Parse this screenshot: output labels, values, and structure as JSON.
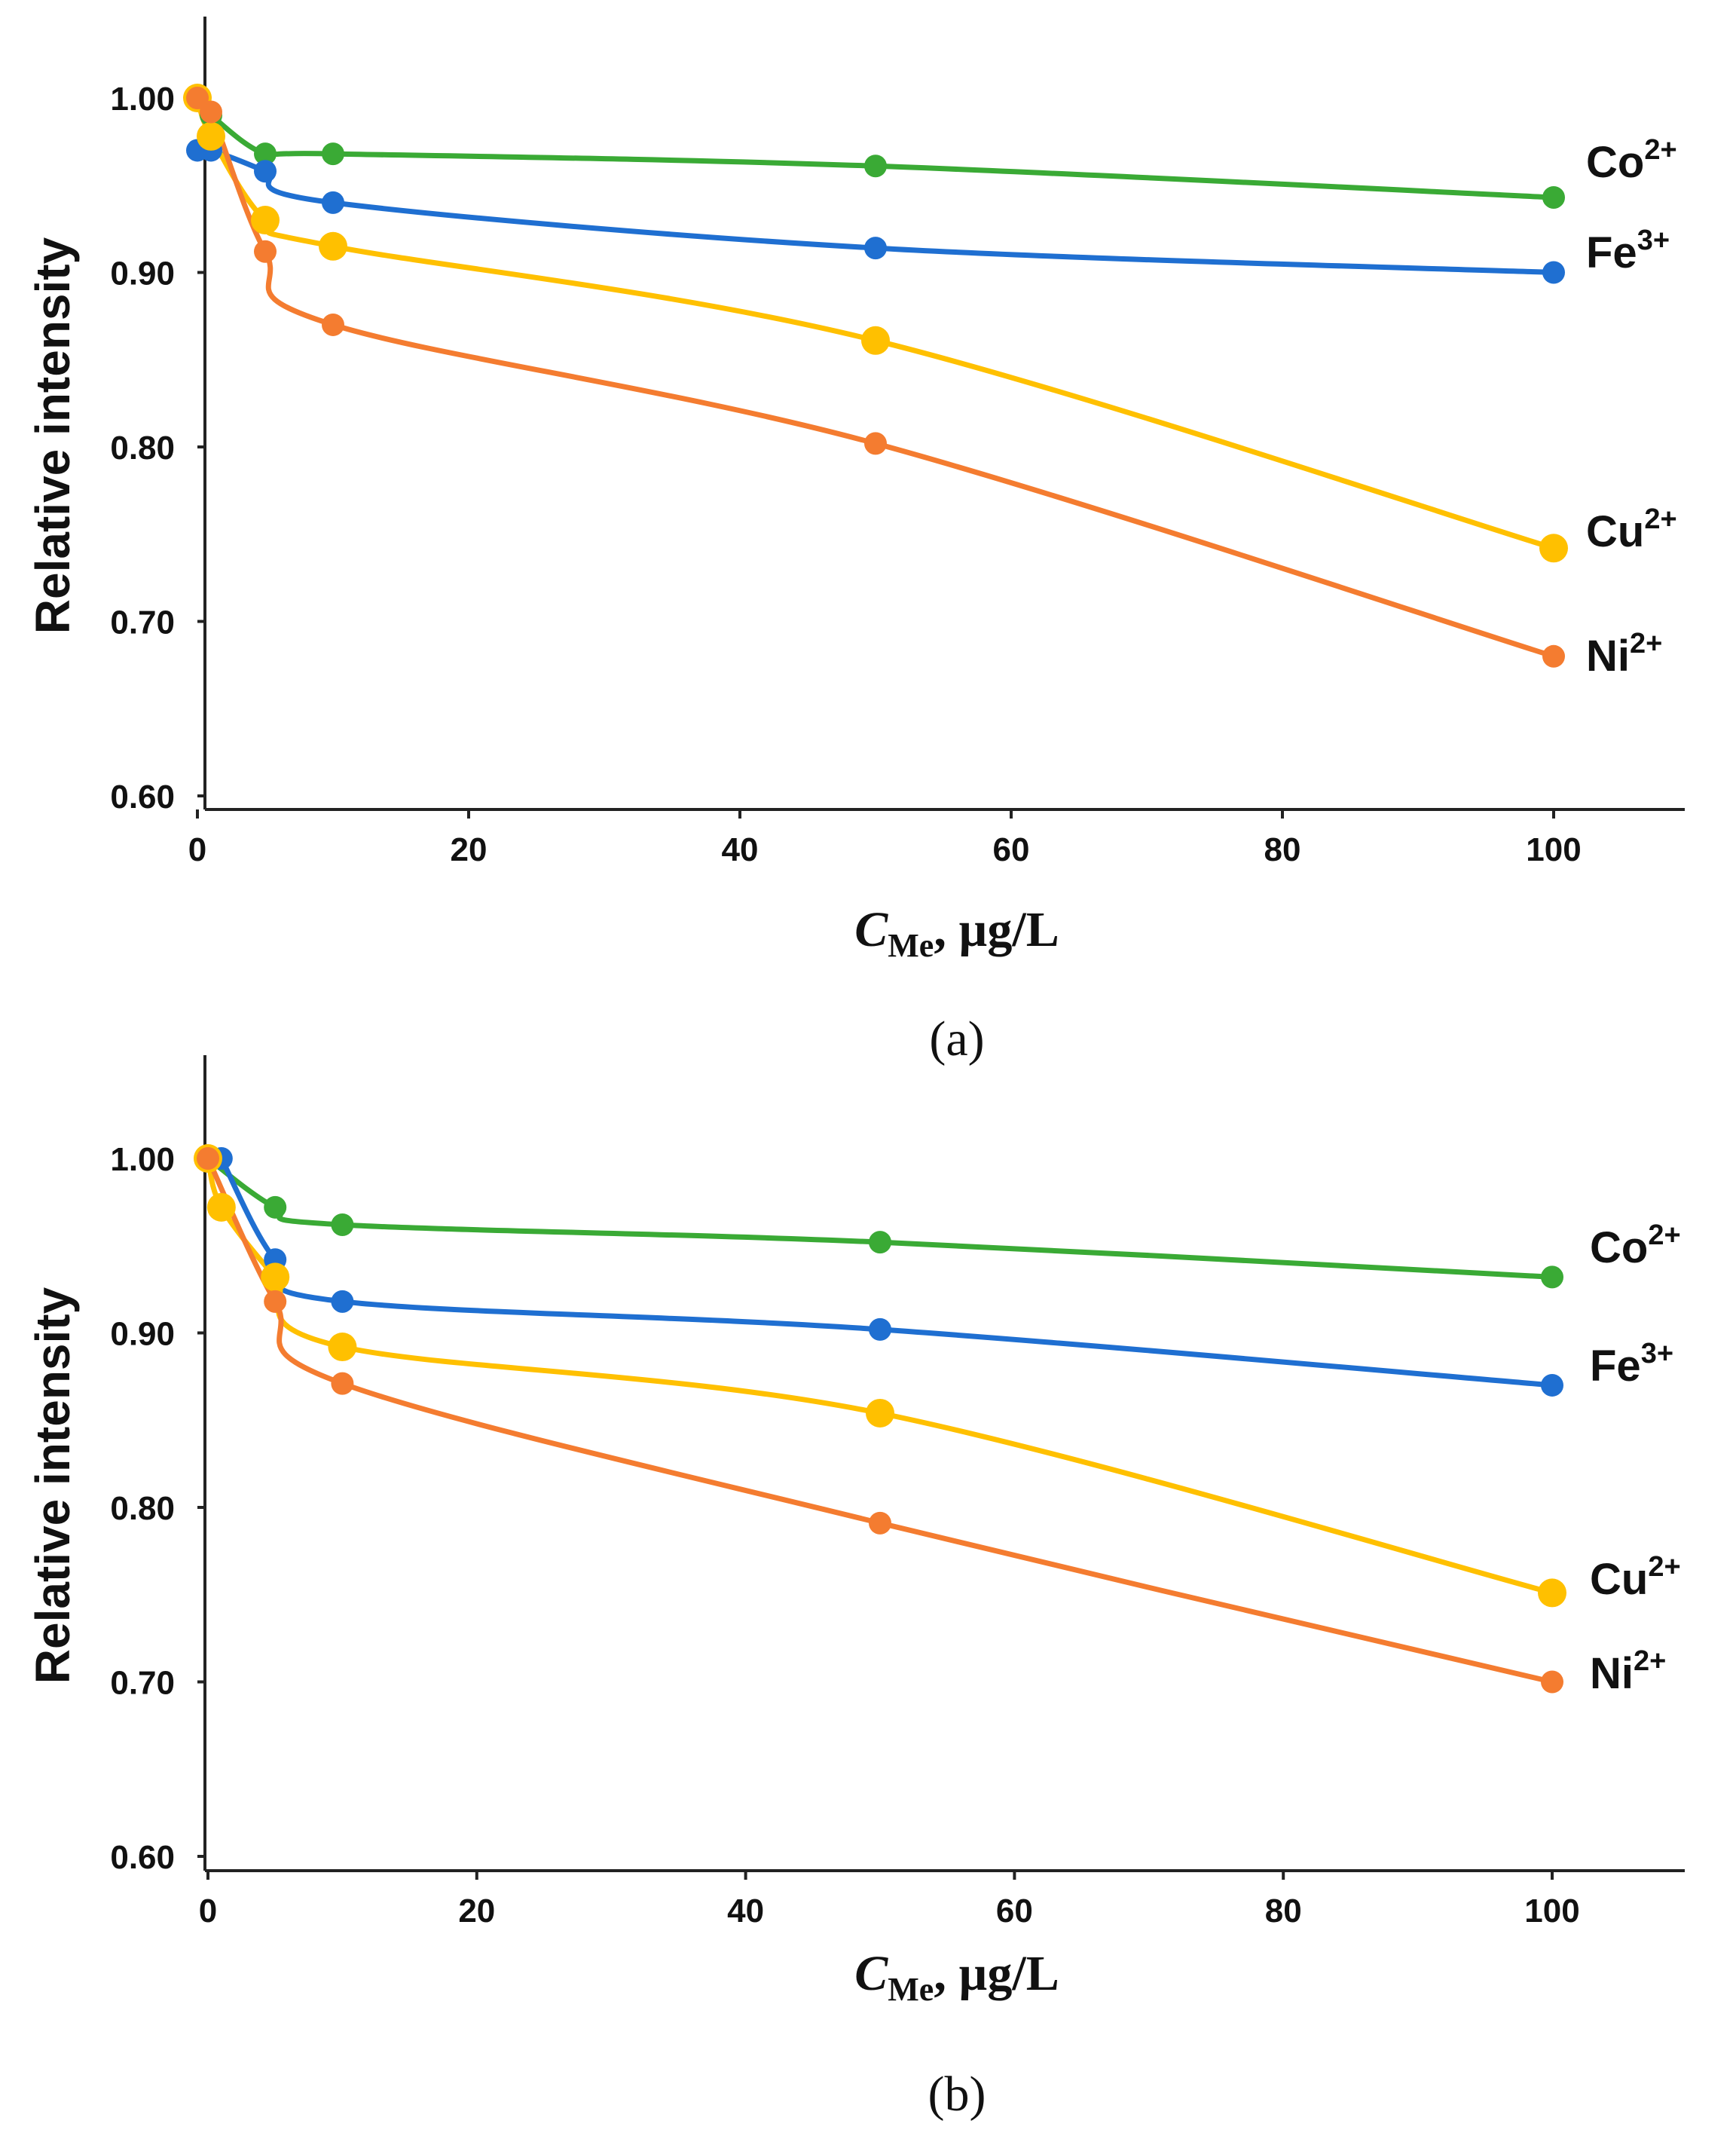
{
  "chart_data": [
    {
      "type": "line",
      "panel": "(a)",
      "ylabel": "Relative intensity",
      "xlabel": {
        "italic": "C",
        "sub": "Me",
        "rest": ", µg/L"
      },
      "xlim": [
        0,
        110
      ],
      "ylim": [
        0.6,
        1.05
      ],
      "xticks": [
        0,
        20,
        40,
        60,
        80,
        100
      ],
      "yticks": [
        0.6,
        0.7,
        0.8,
        0.9,
        1.0
      ],
      "ytick_labels": [
        "0.60",
        "0.70",
        "0.80",
        "0.90",
        "1.00"
      ],
      "xtick_labels": [
        "0",
        "20",
        "40",
        "60",
        "80",
        "100"
      ],
      "series": [
        {
          "name": "Co",
          "charge": "2+",
          "color": "#3aaa35",
          "x": [
            1,
            5,
            10,
            50,
            100
          ],
          "y": [
            0.99,
            0.968,
            0.968,
            0.961,
            0.943
          ]
        },
        {
          "name": "Fe",
          "charge": "3+",
          "color": "#1f6fd1",
          "x": [
            0,
            1,
            5,
            10,
            50,
            100
          ],
          "y": [
            0.97,
            0.97,
            0.958,
            0.94,
            0.914,
            0.9
          ]
        },
        {
          "name": "Cu",
          "charge": "2+",
          "color": "#ffc000",
          "x": [
            0,
            1,
            5,
            10,
            50,
            100
          ],
          "y": [
            1.0,
            0.978,
            0.93,
            0.915,
            0.861,
            0.742
          ]
        },
        {
          "name": "Ni",
          "charge": "2+",
          "color": "#f47c30",
          "x": [
            0,
            1,
            5,
            10,
            50,
            100
          ],
          "y": [
            1.0,
            0.992,
            0.912,
            0.87,
            0.802,
            0.68
          ]
        }
      ]
    },
    {
      "type": "line",
      "panel": "(b)",
      "ylabel": "Relative intensity",
      "xlabel": {
        "italic": "C",
        "sub": "Me",
        "rest": ", µg/L"
      },
      "xlim": [
        0,
        110
      ],
      "ylim": [
        0.6,
        1.05
      ],
      "xticks": [
        0,
        20,
        40,
        60,
        80,
        100
      ],
      "yticks": [
        0.6,
        0.7,
        0.8,
        0.9,
        1.0
      ],
      "ytick_labels": [
        "0.60",
        "0.70",
        "0.80",
        "0.90",
        "1.00"
      ],
      "xtick_labels": [
        "0",
        "20",
        "40",
        "60",
        "80",
        "100"
      ],
      "series": [
        {
          "name": "Co",
          "charge": "2+",
          "color": "#3aaa35",
          "x": [
            0,
            5,
            10,
            50,
            100
          ],
          "y": [
            1.0,
            0.972,
            0.962,
            0.952,
            0.932
          ]
        },
        {
          "name": "Fe",
          "charge": "3+",
          "color": "#1f6fd1",
          "x": [
            1,
            5,
            10,
            50,
            100
          ],
          "y": [
            1.0,
            0.942,
            0.918,
            0.902,
            0.87
          ]
        },
        {
          "name": "Cu",
          "charge": "2+",
          "color": "#ffc000",
          "x": [
            0,
            1,
            5,
            10,
            50,
            100
          ],
          "y": [
            1.0,
            0.972,
            0.932,
            0.892,
            0.854,
            0.751
          ]
        },
        {
          "name": "Ni",
          "charge": "2+",
          "color": "#f47c30",
          "x": [
            0,
            5,
            10,
            50,
            100
          ],
          "y": [
            1.0,
            0.918,
            0.871,
            0.791,
            0.7
          ]
        }
      ]
    }
  ]
}
